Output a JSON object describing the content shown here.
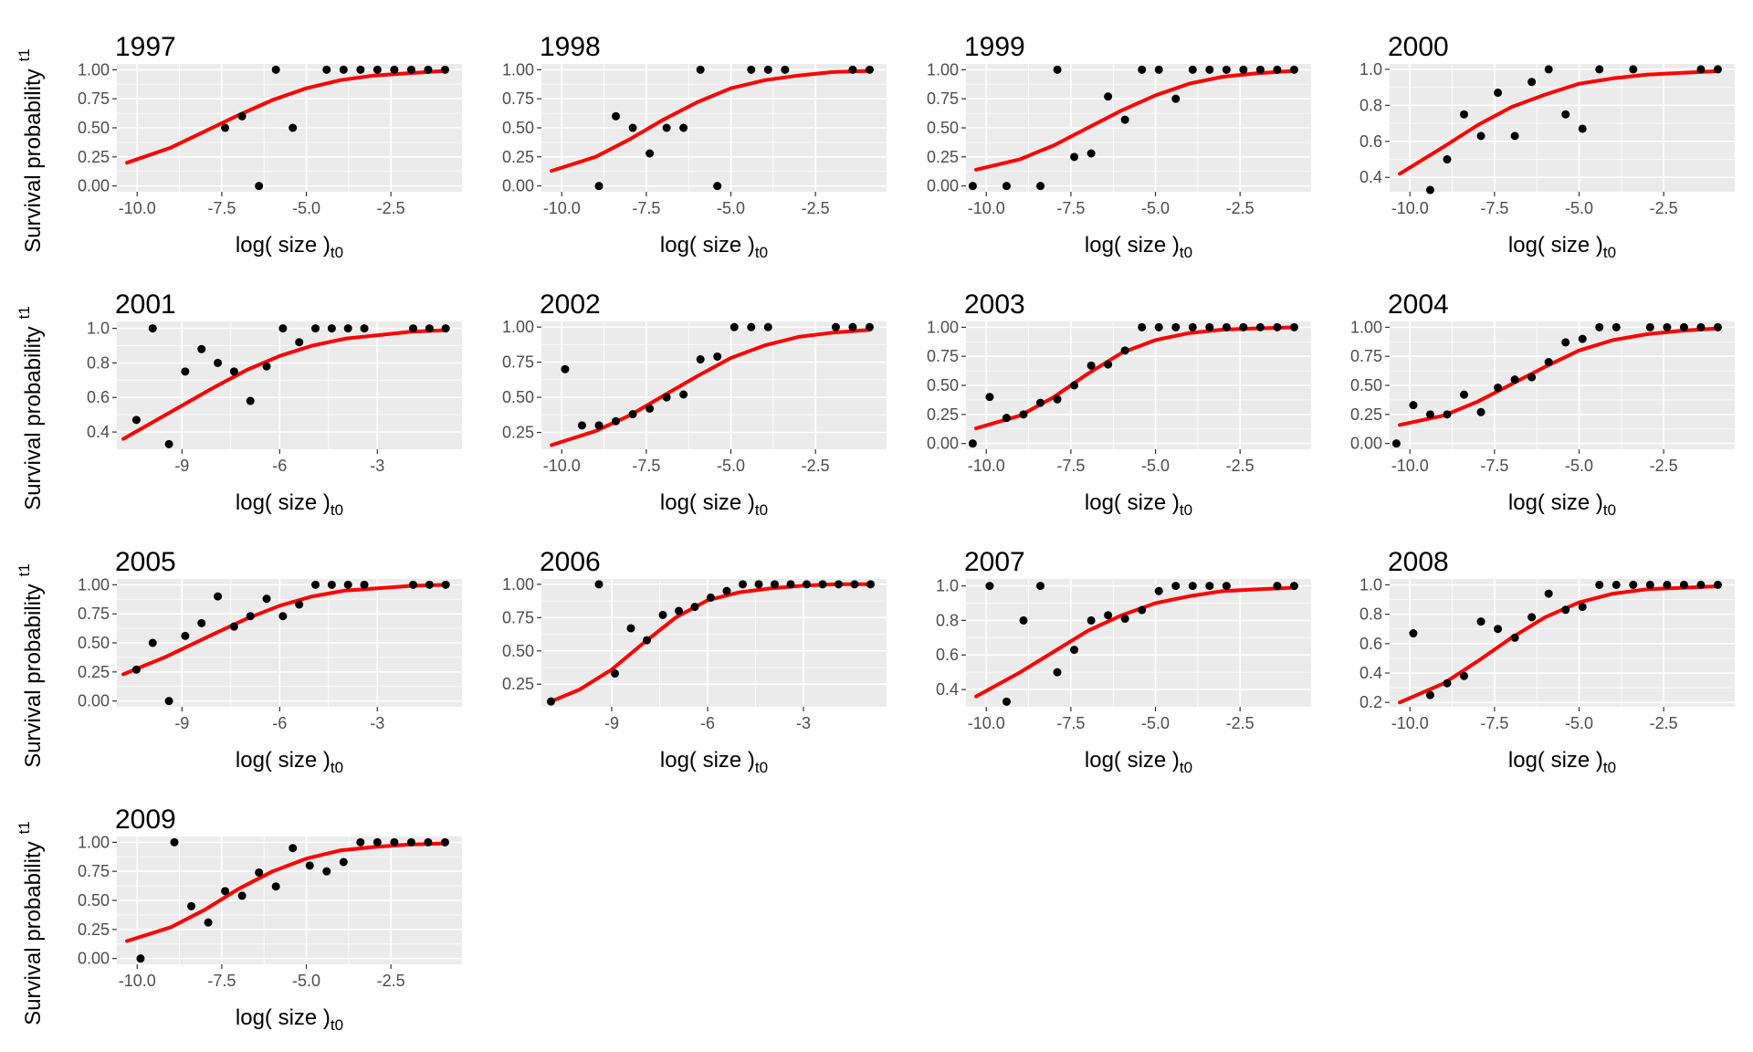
{
  "figure": {
    "x_label": "log( size )",
    "x_label_sub": "t0",
    "y_label": "Survival probability",
    "y_label_sub": "t1",
    "bg_color": "#ebebeb",
    "grid_color": "#ffffff",
    "point_color": "#000000",
    "curve_color": "#ff0000",
    "tick_color": "#4d4d4d"
  },
  "chart_data": [
    {
      "type": "scatter",
      "title": "1997",
      "xlim": [
        -10.6,
        -0.4
      ],
      "ylim": [
        -0.05,
        1.05
      ],
      "xticks": [
        -10,
        -7.5,
        -5,
        -2.5
      ],
      "xtick_labels": [
        "-10.0",
        "-7.5",
        "-5.0",
        "-2.5"
      ],
      "yticks": [
        0,
        0.25,
        0.5,
        0.75,
        1
      ],
      "ytick_labels": [
        "0.00",
        "0.25",
        "0.50",
        "0.75",
        "1.00"
      ],
      "points": {
        "x": [
          -7.4,
          -6.9,
          -6.4,
          -5.9,
          -5.4,
          -4.4,
          -3.9,
          -3.4,
          -2.9,
          -2.4,
          -1.9,
          -1.4,
          -0.9
        ],
        "y": [
          0.5,
          0.6,
          0,
          1,
          0.5,
          1,
          1,
          1,
          1,
          1,
          1,
          1,
          1
        ]
      },
      "curve": {
        "x": [
          -10.3,
          -9,
          -8,
          -7,
          -6,
          -5,
          -4,
          -3,
          -2,
          -0.9
        ],
        "y": [
          0.2,
          0.33,
          0.47,
          0.61,
          0.74,
          0.84,
          0.91,
          0.95,
          0.97,
          0.99
        ]
      }
    },
    {
      "type": "scatter",
      "title": "1998",
      "xlim": [
        -10.6,
        -0.4
      ],
      "ylim": [
        -0.05,
        1.05
      ],
      "xticks": [
        -10,
        -7.5,
        -5,
        -2.5
      ],
      "xtick_labels": [
        "-10.0",
        "-7.5",
        "-5.0",
        "-2.5"
      ],
      "yticks": [
        0,
        0.25,
        0.5,
        0.75,
        1
      ],
      "ytick_labels": [
        "0.00",
        "0.25",
        "0.50",
        "0.75",
        "1.00"
      ],
      "points": {
        "x": [
          -8.9,
          -8.4,
          -7.9,
          -7.4,
          -6.9,
          -6.4,
          -5.9,
          -5.4,
          -4.4,
          -3.9,
          -3.4,
          -1.4,
          -0.9
        ],
        "y": [
          0,
          0.6,
          0.5,
          0.28,
          0.5,
          0.5,
          1,
          0,
          1,
          1,
          1,
          1,
          1
        ]
      },
      "curve": {
        "x": [
          -10.3,
          -9,
          -8,
          -7,
          -6,
          -5,
          -4,
          -3,
          -2,
          -0.9
        ],
        "y": [
          0.13,
          0.25,
          0.4,
          0.57,
          0.72,
          0.84,
          0.91,
          0.95,
          0.98,
          0.99
        ]
      }
    },
    {
      "type": "scatter",
      "title": "1999",
      "xlim": [
        -10.6,
        -0.4
      ],
      "ylim": [
        -0.05,
        1.05
      ],
      "xticks": [
        -10,
        -7.5,
        -5,
        -2.5
      ],
      "xtick_labels": [
        "-10.0",
        "-7.5",
        "-5.0",
        "-2.5"
      ],
      "yticks": [
        0,
        0.25,
        0.5,
        0.75,
        1
      ],
      "ytick_labels": [
        "0.00",
        "0.25",
        "0.50",
        "0.75",
        "1.00"
      ],
      "points": {
        "x": [
          -10.4,
          -9.4,
          -8.4,
          -7.9,
          -7.4,
          -6.9,
          -6.4,
          -5.9,
          -5.4,
          -4.9,
          -4.4,
          -3.9,
          -3.4,
          -2.9,
          -2.4,
          -1.9,
          -1.4,
          -0.9
        ],
        "y": [
          0,
          0,
          0,
          1,
          0.25,
          0.28,
          0.77,
          0.57,
          1,
          1,
          0.75,
          1,
          1,
          1,
          1,
          1,
          1,
          1
        ]
      },
      "curve": {
        "x": [
          -10.3,
          -9,
          -8,
          -7,
          -6,
          -5,
          -4,
          -3,
          -2,
          -0.9
        ],
        "y": [
          0.14,
          0.23,
          0.35,
          0.5,
          0.65,
          0.78,
          0.88,
          0.94,
          0.97,
          0.99
        ]
      }
    },
    {
      "type": "scatter",
      "title": "2000",
      "xlim": [
        -10.6,
        -0.4
      ],
      "ylim": [
        0.32,
        1.03
      ],
      "xticks": [
        -10,
        -7.5,
        -5,
        -2.5
      ],
      "xtick_labels": [
        "-10.0",
        "-7.5",
        "-5.0",
        "-2.5"
      ],
      "yticks": [
        0.4,
        0.6,
        0.8,
        1
      ],
      "ytick_labels": [
        "0.4",
        "0.6",
        "0.8",
        "1.0"
      ],
      "points": {
        "x": [
          -9.4,
          -8.9,
          -8.4,
          -7.9,
          -7.4,
          -6.9,
          -6.4,
          -5.9,
          -5.4,
          -4.9,
          -4.4,
          -3.4,
          -1.4,
          -0.9
        ],
        "y": [
          0.33,
          0.5,
          0.75,
          0.63,
          0.87,
          0.63,
          0.93,
          1,
          0.75,
          0.67,
          1,
          1,
          1,
          1
        ]
      },
      "curve": {
        "x": [
          -10.3,
          -9,
          -8,
          -7,
          -6,
          -5,
          -4,
          -3,
          -2,
          -0.9
        ],
        "y": [
          0.42,
          0.57,
          0.69,
          0.79,
          0.86,
          0.92,
          0.95,
          0.97,
          0.98,
          0.99
        ]
      }
    },
    {
      "type": "scatter",
      "title": "2001",
      "xlim": [
        -11,
        -0.4
      ],
      "ylim": [
        0.3,
        1.04
      ],
      "xticks": [
        -9,
        -6,
        -3
      ],
      "xtick_labels": [
        "-9",
        "-6",
        "-3"
      ],
      "yticks": [
        0.4,
        0.6,
        0.8,
        1
      ],
      "ytick_labels": [
        "0.4",
        "0.6",
        "0.8",
        "1.0"
      ],
      "points": {
        "x": [
          -10.4,
          -9.9,
          -9.4,
          -8.9,
          -8.4,
          -7.9,
          -7.4,
          -6.9,
          -6.4,
          -5.9,
          -5.4,
          -4.9,
          -4.4,
          -3.9,
          -3.4,
          -1.9,
          -1.4,
          -0.9
        ],
        "y": [
          0.47,
          1,
          0.33,
          0.75,
          0.88,
          0.8,
          0.75,
          0.58,
          0.78,
          1,
          0.92,
          1,
          1,
          1,
          1,
          1,
          1,
          1
        ]
      },
      "curve": {
        "x": [
          -10.8,
          -9.5,
          -8,
          -7,
          -6,
          -5,
          -4,
          -3,
          -2,
          -0.9
        ],
        "y": [
          0.36,
          0.5,
          0.66,
          0.76,
          0.84,
          0.9,
          0.94,
          0.96,
          0.98,
          0.99
        ]
      }
    },
    {
      "type": "scatter",
      "title": "2002",
      "xlim": [
        -10.6,
        -0.4
      ],
      "ylim": [
        0.13,
        1.04
      ],
      "xticks": [
        -10,
        -7.5,
        -5,
        -2.5
      ],
      "xtick_labels": [
        "-10.0",
        "-7.5",
        "-5.0",
        "-2.5"
      ],
      "yticks": [
        0.25,
        0.5,
        0.75,
        1
      ],
      "ytick_labels": [
        "0.25",
        "0.50",
        "0.75",
        "1.00"
      ],
      "points": {
        "x": [
          -9.9,
          -9.4,
          -8.9,
          -8.4,
          -7.9,
          -7.4,
          -6.9,
          -6.4,
          -5.9,
          -5.4,
          -4.9,
          -4.4,
          -3.9,
          -1.9,
          -1.4,
          -0.9
        ],
        "y": [
          0.7,
          0.3,
          0.3,
          0.33,
          0.38,
          0.42,
          0.5,
          0.52,
          0.77,
          0.79,
          1,
          1,
          1,
          1,
          1,
          1
        ]
      },
      "curve": {
        "x": [
          -10.3,
          -9,
          -8,
          -7,
          -6,
          -5,
          -4,
          -3,
          -2,
          -0.9
        ],
        "y": [
          0.16,
          0.26,
          0.37,
          0.51,
          0.65,
          0.78,
          0.87,
          0.93,
          0.96,
          0.98
        ]
      }
    },
    {
      "type": "scatter",
      "title": "2003",
      "xlim": [
        -10.6,
        -0.4
      ],
      "ylim": [
        -0.05,
        1.05
      ],
      "xticks": [
        -10,
        -7.5,
        -5,
        -2.5
      ],
      "xtick_labels": [
        "-10.0",
        "-7.5",
        "-5.0",
        "-2.5"
      ],
      "yticks": [
        0,
        0.25,
        0.5,
        0.75,
        1
      ],
      "ytick_labels": [
        "0.00",
        "0.25",
        "0.50",
        "0.75",
        "1.00"
      ],
      "points": {
        "x": [
          -10.4,
          -9.9,
          -9.4,
          -8.9,
          -8.4,
          -7.9,
          -7.4,
          -6.9,
          -6.4,
          -5.9,
          -5.4,
          -4.9,
          -4.4,
          -3.9,
          -3.4,
          -2.9,
          -2.4,
          -1.9,
          -1.4,
          -0.9
        ],
        "y": [
          0,
          0.4,
          0.22,
          0.25,
          0.35,
          0.38,
          0.5,
          0.67,
          0.68,
          0.8,
          1,
          1,
          1,
          1,
          1,
          1,
          1,
          1,
          1,
          1
        ]
      },
      "curve": {
        "x": [
          -10.3,
          -9,
          -8,
          -7,
          -6,
          -5,
          -4,
          -3,
          -2,
          -0.9
        ],
        "y": [
          0.13,
          0.24,
          0.4,
          0.6,
          0.78,
          0.89,
          0.95,
          0.98,
          0.99,
          1
        ]
      }
    },
    {
      "type": "scatter",
      "title": "2004",
      "xlim": [
        -10.6,
        -0.4
      ],
      "ylim": [
        -0.05,
        1.05
      ],
      "xticks": [
        -10,
        -7.5,
        -5,
        -2.5
      ],
      "xtick_labels": [
        "-10.0",
        "-7.5",
        "-5.0",
        "-2.5"
      ],
      "yticks": [
        0,
        0.25,
        0.5,
        0.75,
        1
      ],
      "ytick_labels": [
        "0.00",
        "0.25",
        "0.50",
        "0.75",
        "1.00"
      ],
      "points": {
        "x": [
          -10.4,
          -9.9,
          -9.4,
          -8.9,
          -8.4,
          -7.9,
          -7.4,
          -6.9,
          -6.4,
          -5.9,
          -5.4,
          -4.9,
          -4.4,
          -3.9,
          -2.9,
          -2.4,
          -1.9,
          -1.4,
          -0.9
        ],
        "y": [
          0,
          0.33,
          0.25,
          0.25,
          0.42,
          0.27,
          0.48,
          0.55,
          0.57,
          0.7,
          0.87,
          0.9,
          1,
          1,
          1,
          1,
          1,
          1,
          1
        ]
      },
      "curve": {
        "x": [
          -10.3,
          -9,
          -8,
          -7,
          -6,
          -5,
          -4,
          -3,
          -2,
          -0.9
        ],
        "y": [
          0.16,
          0.24,
          0.36,
          0.51,
          0.66,
          0.8,
          0.89,
          0.94,
          0.97,
          0.99
        ]
      }
    },
    {
      "type": "scatter",
      "title": "2005",
      "xlim": [
        -11,
        -0.4
      ],
      "ylim": [
        -0.05,
        1.05
      ],
      "xticks": [
        -9,
        -6,
        -3
      ],
      "xtick_labels": [
        "-9",
        "-6",
        "-3"
      ],
      "yticks": [
        0,
        0.25,
        0.5,
        0.75,
        1
      ],
      "ytick_labels": [
        "0.00",
        "0.25",
        "0.50",
        "0.75",
        "1.00"
      ],
      "points": {
        "x": [
          -10.4,
          -9.9,
          -9.4,
          -8.9,
          -8.4,
          -7.9,
          -7.4,
          -6.9,
          -6.4,
          -5.9,
          -5.4,
          -4.9,
          -4.4,
          -3.9,
          -3.4,
          -1.9,
          -1.4,
          -0.9
        ],
        "y": [
          0.27,
          0.5,
          0,
          0.56,
          0.67,
          0.9,
          0.64,
          0.73,
          0.88,
          0.73,
          0.83,
          1,
          1,
          1,
          1,
          1,
          1,
          1
        ]
      },
      "curve": {
        "x": [
          -10.8,
          -9.5,
          -8,
          -7,
          -6,
          -5,
          -4,
          -3,
          -2,
          -0.9
        ],
        "y": [
          0.23,
          0.38,
          0.58,
          0.71,
          0.82,
          0.9,
          0.95,
          0.97,
          0.99,
          1
        ]
      }
    },
    {
      "type": "scatter",
      "title": "2006",
      "xlim": [
        -11.2,
        -0.4
      ],
      "ylim": [
        0.08,
        1.04
      ],
      "xticks": [
        -9,
        -6,
        -3
      ],
      "xtick_labels": [
        "-9",
        "-6",
        "-3"
      ],
      "yticks": [
        0.25,
        0.5,
        0.75,
        1
      ],
      "ytick_labels": [
        "0.25",
        "0.50",
        "0.75",
        "1.00"
      ],
      "points": {
        "x": [
          -10.9,
          -9.4,
          -8.9,
          -8.4,
          -7.9,
          -7.4,
          -6.9,
          -6.4,
          -5.9,
          -5.4,
          -4.9,
          -4.4,
          -3.9,
          -3.4,
          -2.9,
          -2.4,
          -1.9,
          -1.4,
          -0.9
        ],
        "y": [
          0.12,
          1,
          0.33,
          0.67,
          0.58,
          0.77,
          0.8,
          0.83,
          0.9,
          0.95,
          1,
          1,
          1,
          1,
          1,
          1,
          1,
          1,
          1
        ]
      },
      "curve": {
        "x": [
          -10.9,
          -10,
          -9,
          -8,
          -7,
          -6,
          -5,
          -4,
          -3,
          -2,
          -0.9
        ],
        "y": [
          0.12,
          0.21,
          0.36,
          0.56,
          0.75,
          0.88,
          0.94,
          0.97,
          0.99,
          1,
          1
        ]
      }
    },
    {
      "type": "scatter",
      "title": "2007",
      "xlim": [
        -10.6,
        -0.4
      ],
      "ylim": [
        0.3,
        1.04
      ],
      "xticks": [
        -10,
        -7.5,
        -5,
        -2.5
      ],
      "xtick_labels": [
        "-10.0",
        "-7.5",
        "-5.0",
        "-2.5"
      ],
      "yticks": [
        0.4,
        0.6,
        0.8,
        1
      ],
      "ytick_labels": [
        "0.4",
        "0.6",
        "0.8",
        "1.0"
      ],
      "points": {
        "x": [
          -9.9,
          -9.4,
          -8.9,
          -8.4,
          -7.9,
          -7.4,
          -6.9,
          -6.4,
          -5.9,
          -5.4,
          -4.9,
          -4.4,
          -3.9,
          -3.4,
          -2.9,
          -1.4,
          -0.9
        ],
        "y": [
          1,
          0.33,
          0.8,
          1,
          0.5,
          0.63,
          0.8,
          0.83,
          0.81,
          0.86,
          0.97,
          1,
          1,
          1,
          1,
          1,
          1
        ]
      },
      "curve": {
        "x": [
          -10.3,
          -9,
          -8,
          -7,
          -6,
          -5,
          -4,
          -3,
          -2,
          -0.9
        ],
        "y": [
          0.36,
          0.5,
          0.62,
          0.74,
          0.83,
          0.9,
          0.94,
          0.97,
          0.98,
          0.99
        ]
      }
    },
    {
      "type": "scatter",
      "title": "2008",
      "xlim": [
        -10.6,
        -0.4
      ],
      "ylim": [
        0.17,
        1.04
      ],
      "xticks": [
        -10,
        -7.5,
        -5,
        -2.5
      ],
      "xtick_labels": [
        "-10.0",
        "-7.5",
        "-5.0",
        "-2.5"
      ],
      "yticks": [
        0.2,
        0.4,
        0.6,
        0.8,
        1
      ],
      "ytick_labels": [
        "0.2",
        "0.4",
        "0.6",
        "0.8",
        "1.0"
      ],
      "points": {
        "x": [
          -9.9,
          -9.4,
          -8.9,
          -8.4,
          -7.9,
          -7.4,
          -6.9,
          -6.4,
          -5.9,
          -5.4,
          -4.9,
          -4.4,
          -3.9,
          -3.4,
          -2.9,
          -2.4,
          -1.9,
          -1.4,
          -0.9
        ],
        "y": [
          0.67,
          0.25,
          0.33,
          0.38,
          0.75,
          0.7,
          0.64,
          0.78,
          0.94,
          0.83,
          0.85,
          1,
          1,
          1,
          1,
          1,
          1,
          1,
          1
        ]
      },
      "curve": {
        "x": [
          -10.3,
          -9,
          -8,
          -7,
          -6,
          -5,
          -4,
          -3,
          -2,
          -0.9
        ],
        "y": [
          0.2,
          0.33,
          0.48,
          0.64,
          0.78,
          0.88,
          0.94,
          0.97,
          0.98,
          0.99
        ]
      }
    },
    {
      "type": "scatter",
      "title": "2009",
      "xlim": [
        -10.6,
        -0.4
      ],
      "ylim": [
        -0.05,
        1.05
      ],
      "xticks": [
        -10,
        -7.5,
        -5,
        -2.5
      ],
      "xtick_labels": [
        "-10.0",
        "-7.5",
        "-5.0",
        "-2.5"
      ],
      "yticks": [
        0,
        0.25,
        0.5,
        0.75,
        1
      ],
      "ytick_labels": [
        "0.00",
        "0.25",
        "0.50",
        "0.75",
        "1.00"
      ],
      "points": {
        "x": [
          -9.9,
          -8.9,
          -8.4,
          -7.9,
          -7.4,
          -6.9,
          -6.4,
          -5.9,
          -5.4,
          -4.9,
          -4.4,
          -3.9,
          -3.4,
          -2.9,
          -2.4,
          -1.9,
          -1.4,
          -0.9
        ],
        "y": [
          0,
          1,
          0.45,
          0.31,
          0.58,
          0.54,
          0.74,
          0.62,
          0.95,
          0.8,
          0.75,
          0.83,
          1,
          1,
          1,
          1,
          1,
          1
        ]
      },
      "curve": {
        "x": [
          -10.3,
          -9,
          -8,
          -7,
          -6,
          -5,
          -4,
          -3,
          -2,
          -0.9
        ],
        "y": [
          0.15,
          0.27,
          0.42,
          0.6,
          0.75,
          0.86,
          0.93,
          0.96,
          0.98,
          0.99
        ]
      }
    }
  ]
}
